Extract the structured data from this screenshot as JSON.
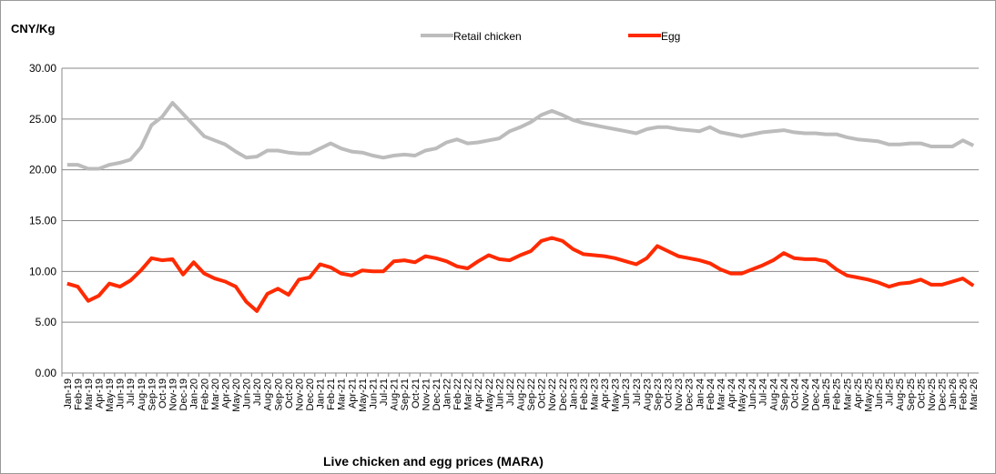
{
  "chart_data": {
    "type": "line",
    "title": "Live chicken and egg prices (MARA)",
    "y_label": "CNY/Kg",
    "categories": [
      "Jan-19",
      "Feb-19",
      "Mar-19",
      "Apr-19",
      "May-19",
      "Jun-19",
      "Jul-19",
      "Aug-19",
      "Sep-19",
      "Oct-19",
      "Nov-19",
      "Dec-19",
      "Jan-20",
      "Feb-20",
      "Mar-20",
      "Apr-20",
      "May-20",
      "Jun-20",
      "Jul-20",
      "Aug-20",
      "Sep-20",
      "Oct-20",
      "Nov-20",
      "Dec-20",
      "Jan-21",
      "Feb-21",
      "Mar-21",
      "Apr-21",
      "May-21",
      "Jun-21",
      "Jul-21",
      "Aug-21",
      "Sep-21",
      "Oct-21",
      "Nov-21",
      "Dec-21",
      "Jan-22",
      "Feb-22",
      "Mar-22",
      "Apr-22",
      "May-22",
      "Jun-22",
      "Jul-22",
      "Aug-22",
      "Sep-22",
      "Oct-22",
      "Nov-22",
      "Dec-22",
      "Jan-23",
      "Feb-23",
      "Mar-23",
      "Apr-23",
      "May-23",
      "Jun-23",
      "Jul-23",
      "Aug-23",
      "Sep-23",
      "Oct-23",
      "Nov-23",
      "Dec-23",
      "Jan-24",
      "Feb-24",
      "Mar-24",
      "Apr-24",
      "May-24",
      "Jun-24",
      "Jul-24",
      "Aug-24",
      "Sep-24",
      "Oct-24",
      "Nov-24",
      "Dec-24",
      "Jan-25",
      "Feb-25",
      "Mar-25",
      "Apr-25",
      "May-25",
      "Jun-25",
      "Jul-25",
      "Aug-25",
      "Sep-25",
      "Oct-25",
      "Nov-25",
      "Dec-25",
      "Jan-26",
      "Feb-26",
      "Mar-26"
    ],
    "series": [
      {
        "name": "Retail chicken",
        "color": "#bcbcbc",
        "values": [
          20.5,
          20.5,
          20.1,
          20.1,
          20.5,
          20.7,
          21.0,
          22.2,
          24.4,
          25.2,
          26.6,
          25.5,
          24.4,
          23.3,
          22.9,
          22.5,
          21.8,
          21.2,
          21.3,
          21.9,
          21.9,
          21.7,
          21.6,
          21.6,
          22.1,
          22.6,
          22.1,
          21.8,
          21.7,
          21.4,
          21.2,
          21.4,
          21.5,
          21.4,
          21.9,
          22.1,
          22.7,
          23.0,
          22.6,
          22.7,
          22.9,
          23.1,
          23.8,
          24.2,
          24.7,
          25.4,
          25.8,
          25.4,
          24.9,
          24.6,
          24.4,
          24.2,
          24.0,
          23.8,
          23.6,
          24.0,
          24.2,
          24.2,
          24.0,
          23.9,
          23.8,
          24.2,
          23.7,
          23.5,
          23.3,
          23.5,
          23.7,
          23.8,
          23.9,
          23.7,
          23.6,
          23.6,
          23.5,
          23.5,
          23.2,
          23.0,
          22.9,
          22.8,
          22.5,
          22.5,
          22.6,
          22.6,
          22.3,
          22.3,
          22.3,
          22.9,
          22.4
        ]
      },
      {
        "name": "Egg",
        "color": "#ff2a00",
        "values": [
          8.8,
          8.5,
          7.1,
          7.6,
          8.8,
          8.5,
          9.1,
          10.1,
          11.3,
          11.1,
          11.2,
          9.7,
          10.9,
          9.8,
          9.3,
          9.0,
          8.5,
          7.0,
          6.1,
          7.8,
          8.3,
          7.7,
          9.2,
          9.4,
          10.7,
          10.4,
          9.8,
          9.6,
          10.1,
          10.0,
          10.0,
          11.0,
          11.1,
          10.9,
          11.5,
          11.3,
          11.0,
          10.5,
          10.3,
          11.0,
          11.6,
          11.2,
          11.1,
          11.6,
          12.0,
          13.0,
          13.3,
          13.0,
          12.2,
          11.7,
          11.6,
          11.5,
          11.3,
          11.0,
          10.7,
          11.3,
          12.5,
          12.0,
          11.5,
          11.3,
          11.1,
          10.8,
          10.2,
          9.8,
          9.8,
          10.2,
          10.6,
          11.1,
          11.8,
          11.3,
          11.2,
          11.2,
          11.0,
          10.2,
          9.6,
          9.4,
          9.2,
          8.9,
          8.5,
          8.8,
          8.9,
          9.2,
          8.7,
          8.7,
          9.0,
          9.3,
          8.6
        ]
      }
    ],
    "ylim": [
      0,
      30
    ],
    "yticks": [
      {
        "value": 0,
        "label": "0.00"
      },
      {
        "value": 5,
        "label": "5.00"
      },
      {
        "value": 10,
        "label": "10.00"
      },
      {
        "value": 15,
        "label": "15.00"
      },
      {
        "value": 20,
        "label": "20.00"
      },
      {
        "value": 25,
        "label": "25.00"
      },
      {
        "value": 30,
        "label": "30.00"
      }
    ],
    "grid": true,
    "legend": "top"
  }
}
